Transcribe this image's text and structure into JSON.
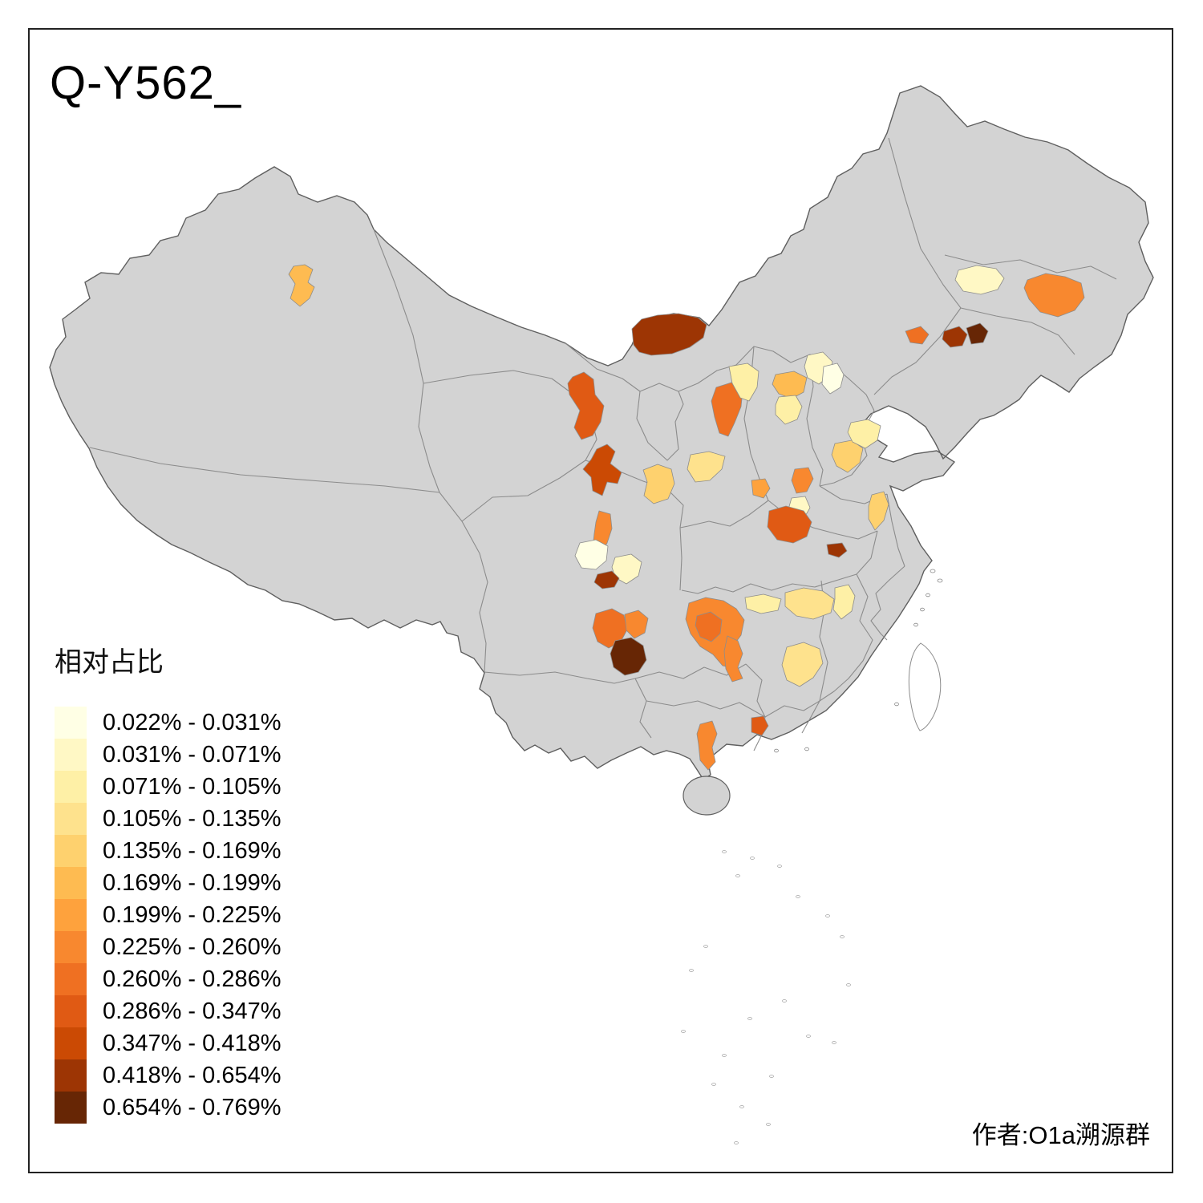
{
  "title": "Q-Y562_",
  "attribution": "作者:O1a溯源群",
  "legend": {
    "title": "相对占比",
    "classes": [
      {
        "label": "0.022% - 0.031%",
        "color": "#FFFFE5"
      },
      {
        "label": "0.031% - 0.071%",
        "color": "#FFF8C5"
      },
      {
        "label": "0.071% - 0.105%",
        "color": "#FEF0A6"
      },
      {
        "label": "0.105% - 0.135%",
        "color": "#FEE28D"
      },
      {
        "label": "0.135% - 0.169%",
        "color": "#FED16E"
      },
      {
        "label": "0.169% - 0.199%",
        "color": "#FEBB51"
      },
      {
        "label": "0.199% - 0.225%",
        "color": "#FEA23D"
      },
      {
        "label": "0.225% - 0.260%",
        "color": "#F8882F"
      },
      {
        "label": "0.260% - 0.286%",
        "color": "#EF7022"
      },
      {
        "label": "0.286% - 0.347%",
        "color": "#E05A14"
      },
      {
        "label": "0.347% - 0.418%",
        "color": "#CB4A04"
      },
      {
        "label": "0.418% - 0.654%",
        "color": "#9D3504"
      },
      {
        "label": "0.654% - 0.769%",
        "color": "#672605"
      }
    ]
  },
  "map": {
    "base_fill": "#D3D3D3",
    "province_border_color": "#8C8C8C",
    "outline_color": "#5F5F5F",
    "island_fill": "#FFFFFF",
    "regions": [
      {
        "name": "shihezi-xinjiang",
        "class_index": 5
      },
      {
        "name": "bayannur-inner-mongolia",
        "class_index": 11
      },
      {
        "name": "alxa-wuhai",
        "class_index": 9
      },
      {
        "name": "lanzhou-area",
        "class_index": 10
      },
      {
        "name": "ningxia-south",
        "class_index": 4
      },
      {
        "name": "gannan-strip",
        "class_index": 7
      },
      {
        "name": "aba-west-sichuan",
        "class_index": 0
      },
      {
        "name": "central-sichuan-pale",
        "class_index": 1
      },
      {
        "name": "yaan-dark",
        "class_index": 11
      },
      {
        "name": "liangshan-west",
        "class_index": 8
      },
      {
        "name": "liangshan-east",
        "class_index": 7
      },
      {
        "name": "southwest-darkest",
        "class_index": 12
      },
      {
        "name": "chongqing-main",
        "class_index": 7
      },
      {
        "name": "chongqing-inner",
        "class_index": 8
      },
      {
        "name": "qianjiang-strip",
        "class_index": 7
      },
      {
        "name": "enshi-pale",
        "class_index": 2
      },
      {
        "name": "dongting-light",
        "class_index": 3
      },
      {
        "name": "dongting-east-pale",
        "class_index": 2
      },
      {
        "name": "hunan-south-light",
        "class_index": 3
      },
      {
        "name": "zhanjiang-strip",
        "class_index": 7
      },
      {
        "name": "guangdong-west-dark",
        "class_index": 9
      },
      {
        "name": "yulin-shaanxi",
        "class_index": 8
      },
      {
        "name": "ordos-pale",
        "class_index": 2
      },
      {
        "name": "datong-light",
        "class_index": 5
      },
      {
        "name": "zhangjiakou-cream",
        "class_index": 1
      },
      {
        "name": "beijing-white",
        "class_index": 0
      },
      {
        "name": "xinzhou-pale",
        "class_index": 2
      },
      {
        "name": "shaanxi-mid-strip",
        "class_index": 3
      },
      {
        "name": "sanmenxia-orange",
        "class_index": 6
      },
      {
        "name": "luoyang-orange",
        "class_index": 7
      },
      {
        "name": "henan-south-pale",
        "class_index": 1
      },
      {
        "name": "nanyang-dark",
        "class_index": 9
      },
      {
        "name": "hubei-east-dark",
        "class_index": 11
      },
      {
        "name": "handan-light",
        "class_index": 4
      },
      {
        "name": "hebei-south-pale",
        "class_index": 2
      },
      {
        "name": "fuyang-light",
        "class_index": 4
      },
      {
        "name": "liaoning-west-orange",
        "class_index": 8
      },
      {
        "name": "liaoning-east-dark",
        "class_index": 11
      },
      {
        "name": "liaoning-far-east-dark",
        "class_index": 12
      },
      {
        "name": "jilin-west-cream",
        "class_index": 1
      },
      {
        "name": "yanbian-orange",
        "class_index": 7
      }
    ]
  },
  "chart_data": {
    "type": "choropleth",
    "title": "Q-Y562_",
    "variable": "相对占比",
    "region_scope": "China prefectures",
    "breaks_percent": [
      0.022,
      0.031,
      0.071,
      0.105,
      0.135,
      0.169,
      0.199,
      0.225,
      0.26,
      0.286,
      0.347,
      0.418,
      0.654,
      0.769
    ],
    "n_classes": 13,
    "legend_position": "bottom-left",
    "base_region_state": "no data (gray)"
  }
}
